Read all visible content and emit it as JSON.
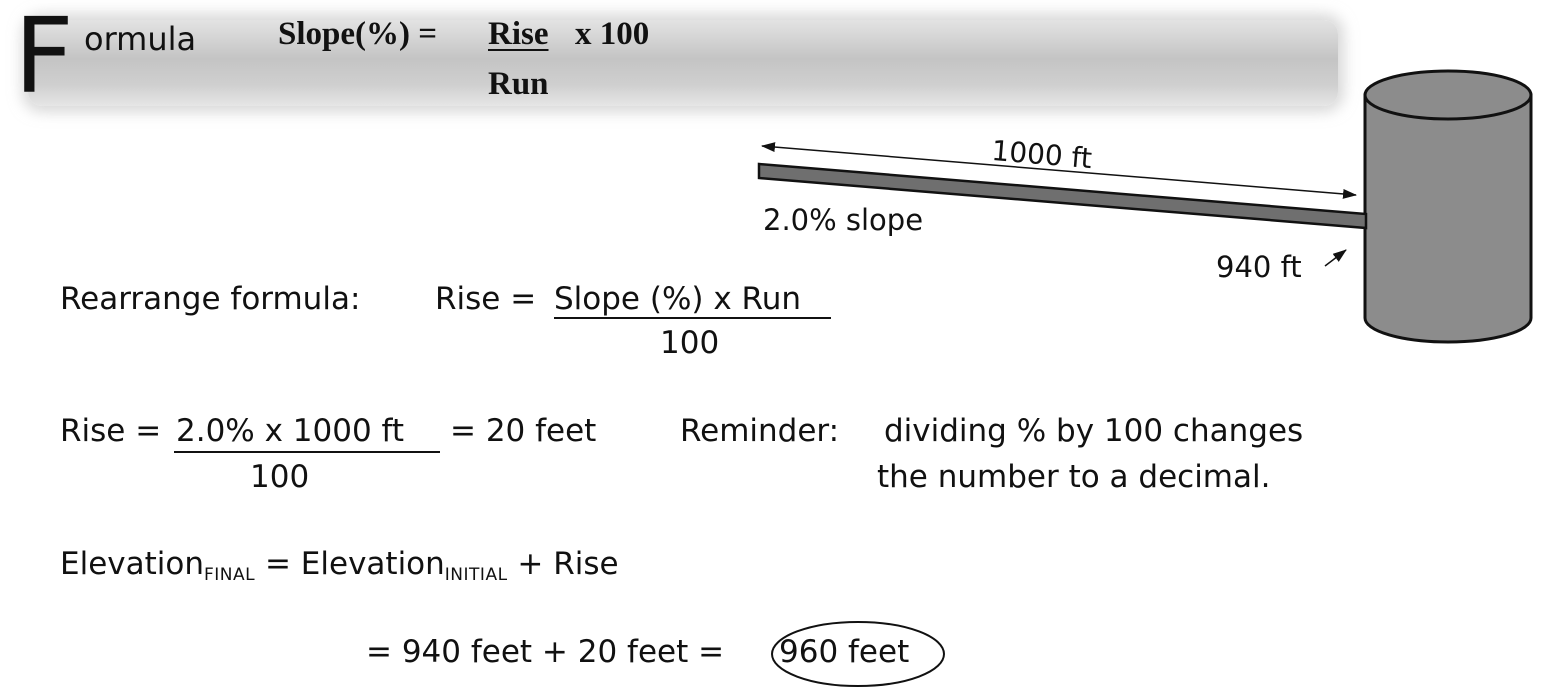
{
  "header": {
    "big_letter": "F",
    "rest": "ormula",
    "formula_lhs": "Slope(%) =",
    "formula_num": "Rise",
    "formula_mult": "x 100",
    "formula_den": "Run"
  },
  "diagram": {
    "length_label": "1000 ft",
    "slope_label": "2.0% slope",
    "elevation_label": "940 ft"
  },
  "rearrange": {
    "prefix": "Rearrange formula:",
    "lhs": "Rise =",
    "num": "Slope (%) x Run",
    "den": "100"
  },
  "rise_calc": {
    "lhs": "Rise =",
    "num": "2.0% x 1000 ft",
    "result": "= 20 feet",
    "den": "100"
  },
  "reminder": {
    "label": "Reminder:",
    "line1": "dividing % by 100 changes",
    "line2": "the number to a decimal."
  },
  "elevation": {
    "word1": "Elevation",
    "sub1": "FINAL",
    "eq": " = ",
    "word2": "Elevation",
    "sub2": "INITIAL",
    "tail": " + Rise",
    "line2": "= 940 feet + 20 feet =",
    "answer": "960 feet"
  }
}
